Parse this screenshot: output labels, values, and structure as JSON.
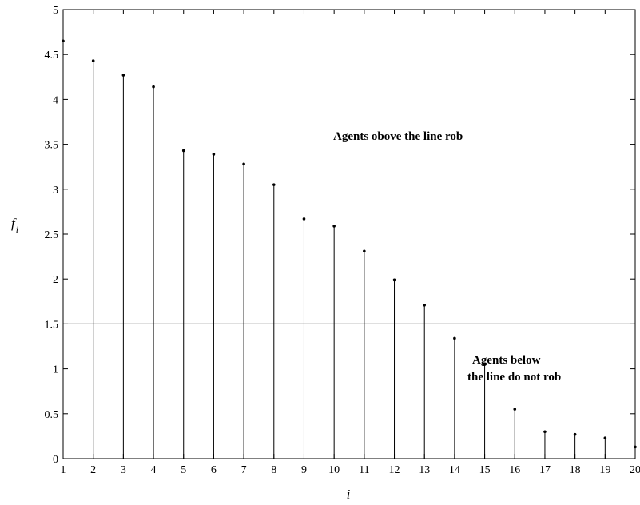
{
  "chart_data": {
    "type": "stem",
    "x": [
      1,
      2,
      3,
      4,
      5,
      6,
      7,
      8,
      9,
      10,
      11,
      12,
      13,
      14,
      15,
      16,
      17,
      18,
      19,
      20
    ],
    "values": [
      4.65,
      4.43,
      4.27,
      4.14,
      3.43,
      3.39,
      3.28,
      3.05,
      2.67,
      2.59,
      2.31,
      1.99,
      1.71,
      1.34,
      1.05,
      0.55,
      0.3,
      0.27,
      0.23,
      0.13
    ],
    "xlim": [
      1,
      20
    ],
    "ylim": [
      0,
      5
    ],
    "xticks": [
      "1",
      "2",
      "3",
      "4",
      "5",
      "6",
      "7",
      "8",
      "9",
      "10",
      "11",
      "12",
      "13",
      "14",
      "15",
      "16",
      "17",
      "18",
      "19",
      "20"
    ],
    "yticks": [
      "0",
      "0.5",
      "1",
      "1.5",
      "2",
      "2.5",
      "3",
      "3.5",
      "4",
      "4.5",
      "5"
    ],
    "xlabel": "i",
    "ylabel": {
      "base": "f",
      "subscript": "i"
    },
    "threshold": 1.5,
    "grid": false,
    "annotations": {
      "above": "Agents obove the line rob",
      "below_line1": "Agents below",
      "below_line2": "the line do not rob"
    }
  }
}
